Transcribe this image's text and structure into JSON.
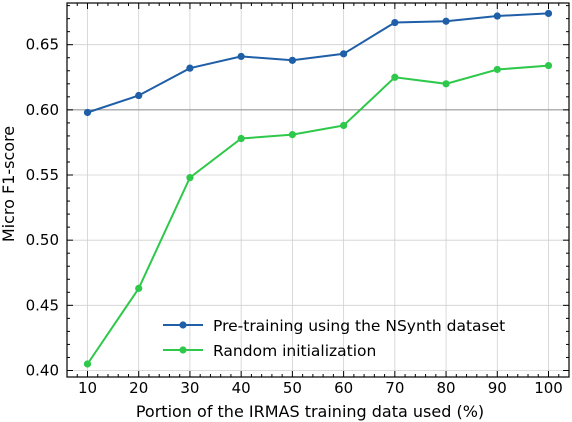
{
  "chart_data": {
    "type": "line",
    "xlabel": "Portion of the IRMAS training data used (%)",
    "ylabel": "Micro F1-score",
    "x": [
      10,
      20,
      30,
      40,
      50,
      60,
      70,
      80,
      90,
      100
    ],
    "xlim": [
      6,
      104
    ],
    "ylim": [
      0.395,
      0.682
    ],
    "xticks": [
      10,
      20,
      30,
      40,
      50,
      60,
      70,
      80,
      90,
      100
    ],
    "yticks": [
      0.4,
      0.45,
      0.5,
      0.55,
      0.6,
      0.65
    ],
    "ytick_labels": [
      "0.40",
      "0.45",
      "0.50",
      "0.55",
      "0.60",
      "0.65"
    ],
    "grid": true,
    "reference_line_y": 0.6,
    "legend_position": "lower right",
    "series": [
      {
        "name": "Pre-training using the NSynth dataset",
        "color": "#1f5fa8",
        "marker": "circle",
        "values": [
          0.598,
          0.611,
          0.632,
          0.641,
          0.638,
          0.643,
          0.667,
          0.668,
          0.672,
          0.674
        ]
      },
      {
        "name": "Random initialization",
        "color": "#2ec84a",
        "marker": "circle",
        "values": [
          0.405,
          0.463,
          0.548,
          0.578,
          0.581,
          0.588,
          0.625,
          0.62,
          0.631,
          0.634
        ]
      }
    ]
  }
}
